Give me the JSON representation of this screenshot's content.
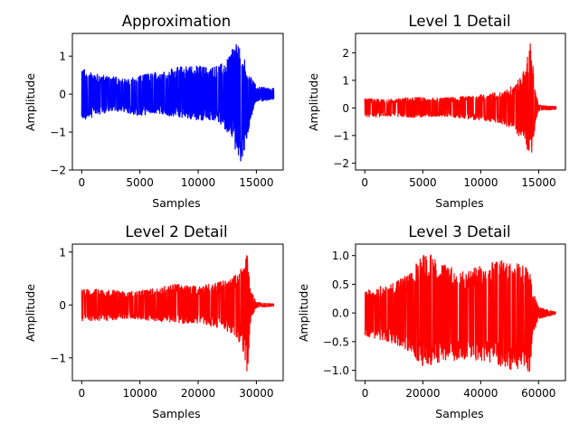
{
  "chart_data": [
    {
      "type": "line",
      "title": "Approximation",
      "xlabel": "Samples",
      "ylabel": "Amplitude",
      "xlim": [
        -800,
        17300
      ],
      "ylim": [
        -2.0,
        1.6
      ],
      "xticks": [
        0,
        5000,
        10000,
        15000
      ],
      "yticks": [
        -2,
        -1,
        0,
        1
      ],
      "grid": false,
      "series": [
        {
          "color": "#0000ff",
          "n_samples": 16500,
          "envelope": {
            "x": [
              0,
              1000,
              2000,
              3000,
              4000,
              5000,
              6000,
              7000,
              8000,
              9000,
              10000,
              11000,
              12000,
              13000,
              13500,
              14000,
              14500,
              15000,
              16500
            ],
            "upper": [
              0.7,
              0.55,
              0.5,
              0.45,
              0.4,
              0.5,
              0.55,
              0.65,
              0.7,
              0.75,
              0.75,
              0.7,
              0.8,
              1.2,
              1.4,
              0.9,
              0.5,
              0.2,
              0.15
            ],
            "lower": [
              -0.7,
              -0.6,
              -0.5,
              -0.45,
              -0.5,
              -0.6,
              -0.5,
              -0.55,
              -0.6,
              -0.65,
              -0.7,
              -0.7,
              -0.8,
              -1.2,
              -1.9,
              -1.5,
              -0.7,
              -0.2,
              -0.15
            ]
          }
        }
      ]
    },
    {
      "type": "line",
      "title": "Level 1 Detail",
      "xlabel": "Samples",
      "ylabel": "Amplitude",
      "xlim": [
        -800,
        17300
      ],
      "ylim": [
        -2.25,
        2.7
      ],
      "xticks": [
        0,
        5000,
        10000,
        15000
      ],
      "yticks": [
        -2,
        -1,
        0,
        1,
        2
      ],
      "grid": false,
      "series": [
        {
          "color": "#ff0000",
          "n_samples": 16500,
          "envelope": {
            "x": [
              0,
              2000,
              4000,
              6000,
              8000,
              10000,
              11000,
              12000,
              13000,
              13800,
              14300,
              14700,
              15000,
              16500
            ],
            "upper": [
              0.35,
              0.3,
              0.4,
              0.35,
              0.4,
              0.5,
              0.55,
              0.6,
              0.9,
              1.4,
              2.5,
              0.6,
              0.1,
              0.05
            ],
            "lower": [
              -0.35,
              -0.3,
              -0.35,
              -0.3,
              -0.35,
              -0.45,
              -0.5,
              -0.6,
              -0.9,
              -1.2,
              -2.0,
              -0.6,
              -0.1,
              -0.05
            ]
          }
        }
      ]
    },
    {
      "type": "line",
      "title": "Level 2 Detail",
      "xlabel": "Samples",
      "ylabel": "Amplitude",
      "xlim": [
        -1600,
        34600
      ],
      "ylim": [
        -1.43,
        1.15
      ],
      "xticks": [
        0,
        10000,
        20000,
        30000
      ],
      "yticks": [
        -1,
        0,
        1
      ],
      "grid": false,
      "series": [
        {
          "color": "#ff0000",
          "n_samples": 33000,
          "envelope": {
            "x": [
              0,
              4000,
              8000,
              12000,
              16000,
              20000,
              24000,
              26000,
              27500,
              28500,
              29000,
              30000,
              33000
            ],
            "upper": [
              0.3,
              0.3,
              0.25,
              0.3,
              0.4,
              0.35,
              0.45,
              0.55,
              0.7,
              1.05,
              0.3,
              0.05,
              0.02
            ],
            "lower": [
              -0.3,
              -0.3,
              -0.25,
              -0.3,
              -0.35,
              -0.35,
              -0.45,
              -0.55,
              -0.8,
              -1.35,
              -0.3,
              -0.05,
              -0.02
            ]
          }
        }
      ]
    },
    {
      "type": "line",
      "title": "Level 3 Detail",
      "xlabel": "Samples",
      "ylabel": "Amplitude",
      "xlim": [
        -3300,
        69300
      ],
      "ylim": [
        -1.18,
        1.2
      ],
      "xticks": [
        0,
        20000,
        40000,
        60000
      ],
      "yticks": [
        -1.0,
        -0.5,
        0.0,
        0.5,
        1.0
      ],
      "grid": false,
      "series": [
        {
          "color": "#ff0000",
          "n_samples": 66000,
          "envelope": {
            "x": [
              0,
              8000,
              16000,
              20000,
              28000,
              36000,
              44000,
              50000,
              55000,
              57000,
              58000,
              60000,
              66000
            ],
            "upper": [
              0.4,
              0.5,
              0.7,
              1.1,
              0.85,
              0.75,
              0.9,
              0.95,
              0.9,
              0.7,
              0.4,
              0.1,
              0.02
            ],
            "lower": [
              -0.4,
              -0.5,
              -0.7,
              -0.95,
              -0.85,
              -0.8,
              -0.9,
              -1.0,
              -0.95,
              -1.05,
              -0.4,
              -0.1,
              -0.02
            ]
          }
        }
      ]
    }
  ]
}
